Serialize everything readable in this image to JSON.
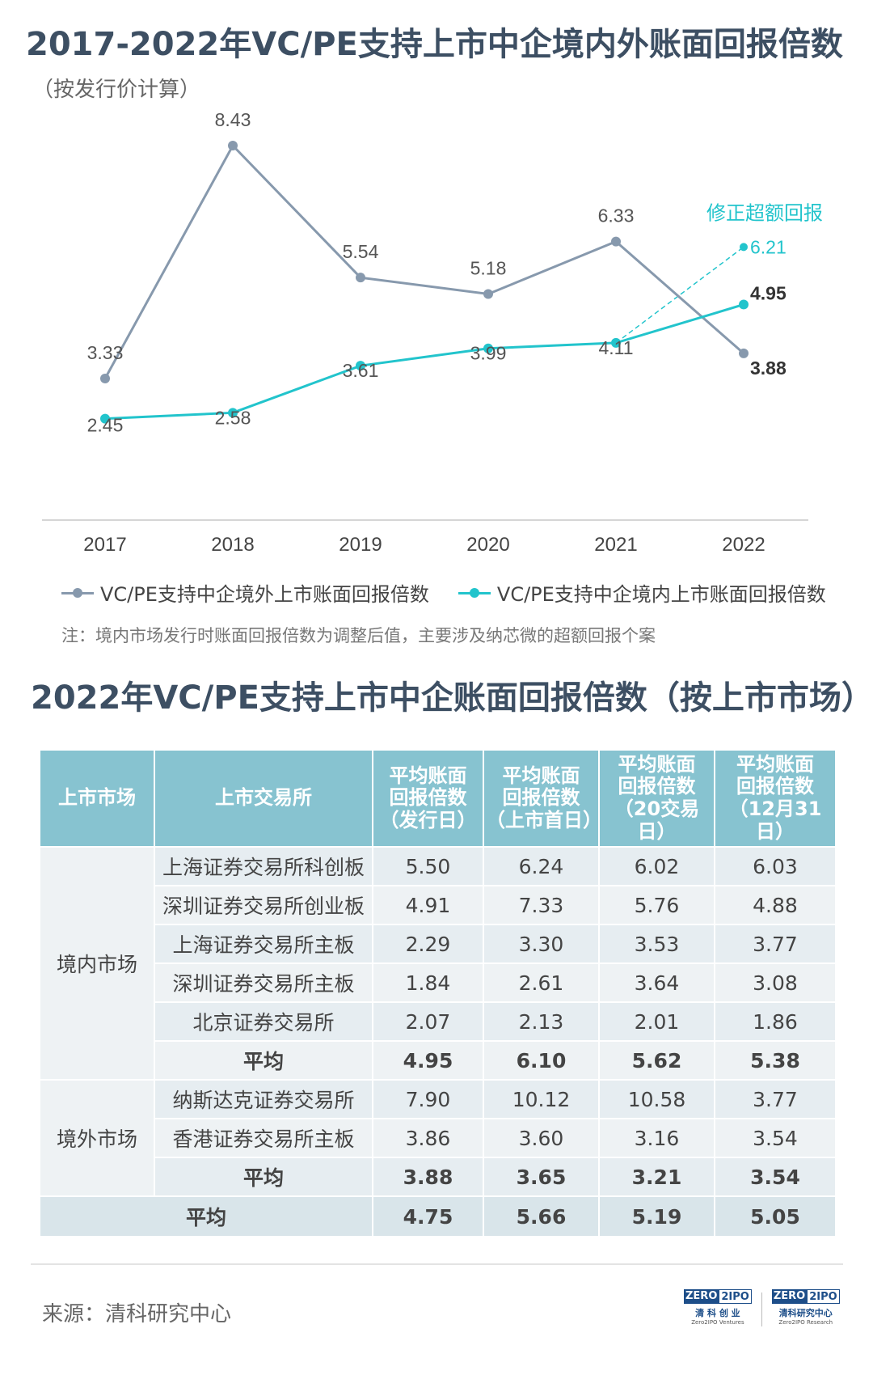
{
  "title": "2017-2022年VC/PE支持上市中企境内外账面回报倍数",
  "subtitle": "（按发行价计算）",
  "chart_data": {
    "type": "line",
    "title": "2017-2022年VC/PE支持上市中企境内外账面回报倍数",
    "subtitle": "（按发行价计算）",
    "categories": [
      "2017",
      "2018",
      "2019",
      "2020",
      "2021",
      "2022"
    ],
    "series": [
      {
        "name": "VC/PE支持中企境外上市账面回报倍数",
        "values": [
          3.33,
          8.43,
          5.54,
          5.18,
          6.33,
          3.88
        ],
        "labels": [
          "3.33",
          "8.43",
          "5.54",
          "5.18",
          "6.33",
          "3.88"
        ],
        "color": "#8799ad"
      },
      {
        "name": "VC/PE支持中企境内上市账面回报倍数",
        "values": [
          2.45,
          2.58,
          3.61,
          3.99,
          4.11,
          4.95
        ],
        "labels": [
          "2.45",
          "2.58",
          "3.61",
          "3.99",
          "4.11",
          "4.95"
        ],
        "color": "#22c4cc"
      }
    ],
    "annotation": {
      "text": "修正超额回报",
      "x": "2022",
      "value": 6.21,
      "label": "6.21",
      "from_x": "2021",
      "from_value": 4.11,
      "color": "#22c4cc"
    },
    "ylim": [
      0,
      9
    ],
    "grid": false,
    "legend": "bottom"
  },
  "note": "注：境内市场发行时账面回报倍数为调整后值，主要涉及纳芯微的超额回报个案",
  "table": {
    "title": "2022年VC/PE支持上市中企账面回报倍数（按上市市场）",
    "headers": [
      "上市市场",
      "上市交易所",
      "平均账面\n回报倍数\n（发行日）",
      "平均账面\n回报倍数\n（上市首日）",
      "平均账面\n回报倍数\n（20交易日）",
      "平均账面\n回报倍数\n（12月31日）"
    ],
    "domestic_market": "境内市场",
    "domestic_rows": [
      [
        "上海证券交易所科创板",
        "5.50",
        "6.24",
        "6.02",
        "6.03"
      ],
      [
        "深圳证券交易所创业板",
        "4.91",
        "7.33",
        "5.76",
        "4.88"
      ],
      [
        "上海证券交易所主板",
        "2.29",
        "3.30",
        "3.53",
        "3.77"
      ],
      [
        "深圳证券交易所主板",
        "1.84",
        "2.61",
        "3.64",
        "3.08"
      ],
      [
        "北京证券交易所",
        "2.07",
        "2.13",
        "2.01",
        "1.86"
      ]
    ],
    "domestic_avg": [
      "平均",
      "4.95",
      "6.10",
      "5.62",
      "5.38"
    ],
    "overseas_market": "境外市场",
    "overseas_rows": [
      [
        "纳斯达克证券交易所",
        "7.90",
        "10.12",
        "10.58",
        "3.77"
      ],
      [
        "香港证券交易所主板",
        "3.86",
        "3.60",
        "3.16",
        "3.54"
      ]
    ],
    "overseas_avg": [
      "平均",
      "3.88",
      "3.65",
      "3.21",
      "3.54"
    ],
    "grand_avg": [
      "平均",
      "4.75",
      "5.66",
      "5.19",
      "5.05"
    ]
  },
  "source": "来源：清科研究中心",
  "logos": [
    {
      "box1": "ZERO",
      "box2": "2IPO",
      "cn": "清 科 创 业",
      "en": "Zero2IPO Ventures"
    },
    {
      "box1": "ZERO",
      "box2": "2IPO",
      "cn": "清科研究中心",
      "en": "Zero2IPO Research"
    }
  ]
}
